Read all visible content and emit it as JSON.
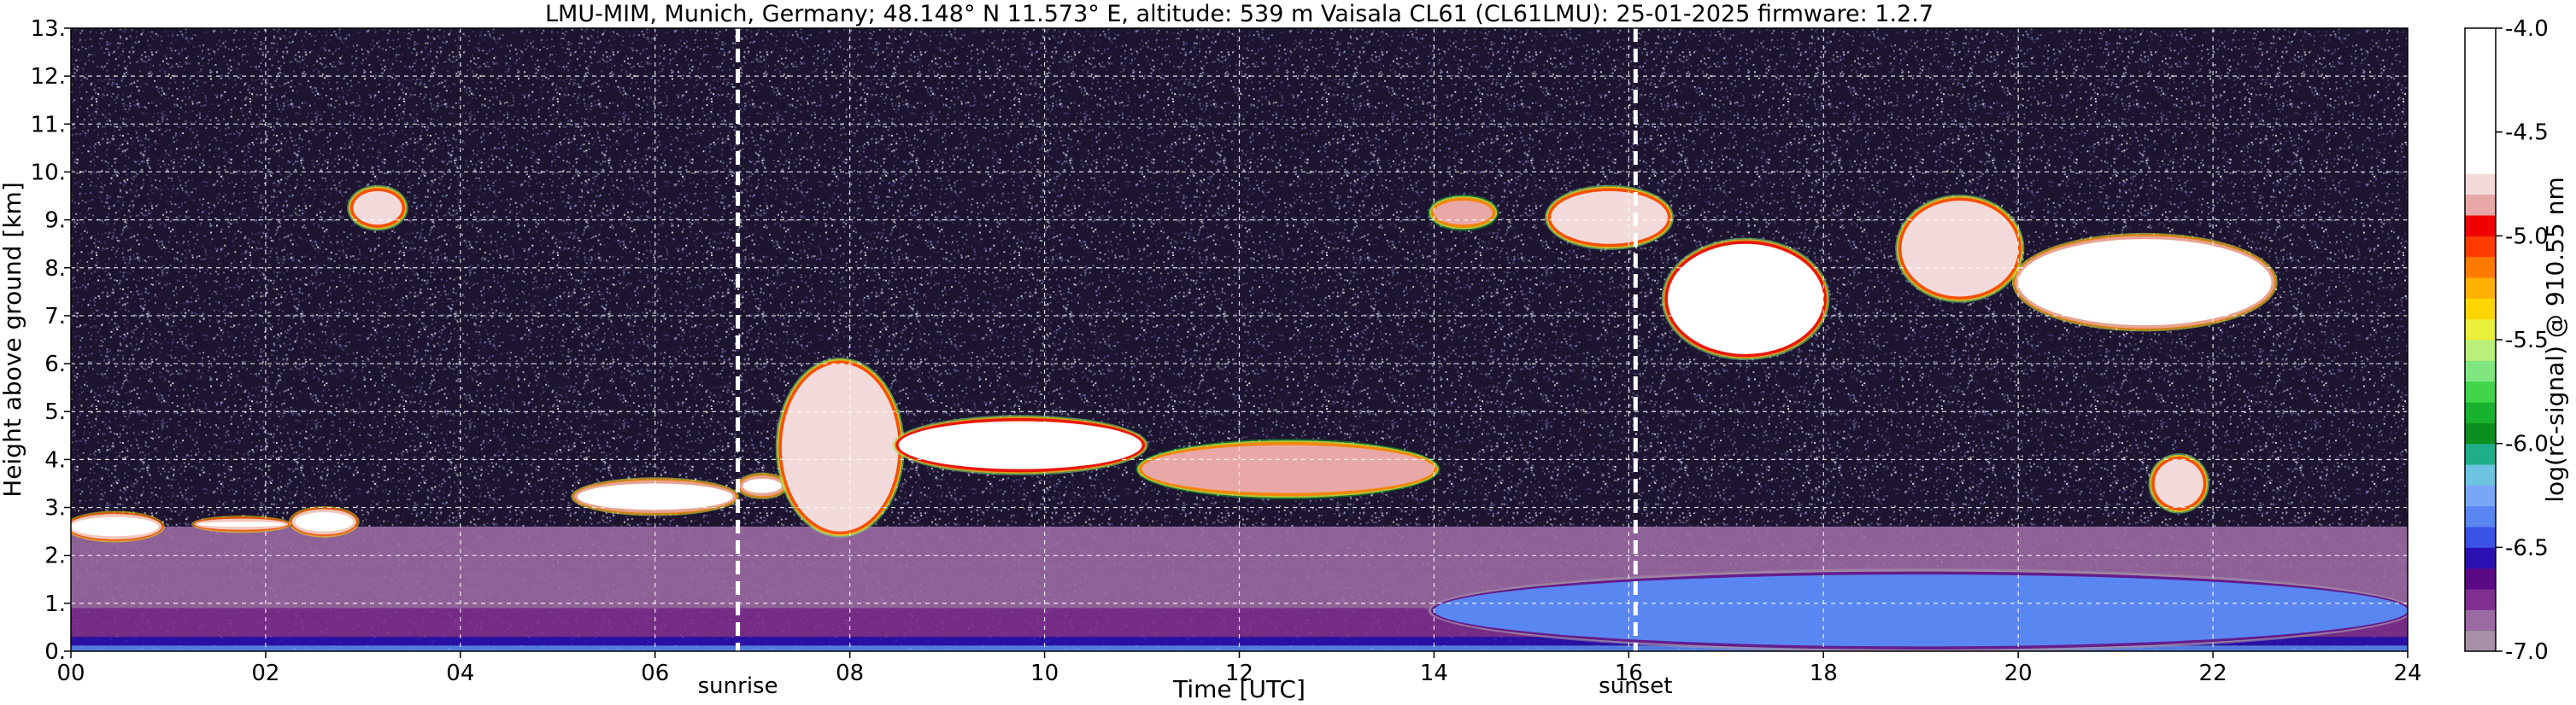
{
  "chart_data": {
    "type": "heatmap",
    "title": "LMU-MIM, Munich, Germany; 48.148° N 11.573° E, altitude: 539 m    Vaisala CL61 (CL61LMU): 25-01-2025    firmware: 1.2.7",
    "xlabel": "Time [UTC]",
    "ylabel": "Height above ground [km]",
    "xlim": [
      0,
      24
    ],
    "ylim": [
      0,
      13
    ],
    "x_ticks": [
      0,
      2,
      4,
      6,
      8,
      10,
      12,
      14,
      16,
      18,
      20,
      22,
      24
    ],
    "x_tick_labels": [
      "00",
      "02",
      "04",
      "06",
      "08",
      "10",
      "12",
      "14",
      "16",
      "18",
      "20",
      "22",
      "24"
    ],
    "y_ticks": [
      0,
      1,
      2,
      3,
      4,
      5,
      6,
      7,
      8,
      9,
      10,
      11,
      12,
      13
    ],
    "y_tick_labels": [
      "0.",
      "1.",
      "2.",
      "3.",
      "4.",
      "5.",
      "6.",
      "7.",
      "8.",
      "9.",
      "10.",
      "11.",
      "12.",
      "13."
    ],
    "grid": true,
    "colorbar": {
      "label": "log(rc-signal) @ 910.55 nm",
      "range": [
        -7.0,
        -4.0
      ],
      "ticks": [
        -7.0,
        -6.5,
        -6.0,
        -5.5,
        -5.0,
        -4.5,
        -4.0
      ],
      "tick_labels": [
        "-7.0",
        "-6.5",
        "-6.0",
        "-5.5",
        "-5.0",
        "-4.5",
        "-4.0"
      ],
      "levels": [
        {
          "from": -7.0,
          "to": -6.9,
          "color": "#a690a8"
        },
        {
          "from": -6.9,
          "to": -6.8,
          "color": "#9b6aa3"
        },
        {
          "from": -6.8,
          "to": -6.7,
          "color": "#7f2f8f"
        },
        {
          "from": -6.7,
          "to": -6.6,
          "color": "#5b0a86"
        },
        {
          "from": -6.6,
          "to": -6.5,
          "color": "#2a10b0"
        },
        {
          "from": -6.5,
          "to": -6.4,
          "color": "#3a52e6"
        },
        {
          "from": -6.4,
          "to": -6.3,
          "color": "#5a86f2"
        },
        {
          "from": -6.3,
          "to": -6.2,
          "color": "#7aa6f6"
        },
        {
          "from": -6.2,
          "to": -6.1,
          "color": "#6cc4e0"
        },
        {
          "from": -6.1,
          "to": -6.0,
          "color": "#1fae8a"
        },
        {
          "from": -6.0,
          "to": -5.9,
          "color": "#0c8f1e"
        },
        {
          "from": -5.9,
          "to": -5.8,
          "color": "#18b22e"
        },
        {
          "from": -5.8,
          "to": -5.7,
          "color": "#3fd44a"
        },
        {
          "from": -5.7,
          "to": -5.6,
          "color": "#7fe680"
        },
        {
          "from": -5.6,
          "to": -5.5,
          "color": "#b9f07a"
        },
        {
          "from": -5.5,
          "to": -5.4,
          "color": "#e9f03a"
        },
        {
          "from": -5.4,
          "to": -5.3,
          "color": "#ffd500"
        },
        {
          "from": -5.3,
          "to": -5.2,
          "color": "#ffb000"
        },
        {
          "from": -5.2,
          "to": -5.1,
          "color": "#ff7a00"
        },
        {
          "from": -5.1,
          "to": -5.0,
          "color": "#ff3c00"
        },
        {
          "from": -5.0,
          "to": -4.9,
          "color": "#f00000"
        },
        {
          "from": -4.9,
          "to": -4.8,
          "color": "#e9a8a8"
        },
        {
          "from": -4.8,
          "to": -4.7,
          "color": "#f2dada"
        },
        {
          "from": -4.7,
          "to": -4.0,
          "color": "#ffffff"
        }
      ]
    },
    "markers": [
      {
        "label": "sunrise",
        "x": 6.85
      },
      {
        "label": "sunset",
        "x": 16.07
      }
    ],
    "background_bands": [
      {
        "from": 0.0,
        "to": 0.12,
        "level": -6.4
      },
      {
        "from": 0.12,
        "to": 0.3,
        "level": -6.6
      },
      {
        "from": 0.3,
        "to": 0.9,
        "level": -6.8
      },
      {
        "from": 0.9,
        "to": 1.7,
        "level": -6.85
      },
      {
        "from": 1.7,
        "to": 2.6,
        "level": -6.9
      }
    ],
    "features": [
      {
        "name": "low cloud 00-01",
        "x": [
          0.0,
          0.9
        ],
        "y": [
          2.4,
          2.8
        ],
        "level": -4.5
      },
      {
        "name": "low cloud 01-02",
        "x": [
          1.3,
          2.2
        ],
        "y": [
          2.6,
          2.7
        ],
        "level": -4.5
      },
      {
        "name": "low cloud 02-03",
        "x": [
          2.3,
          2.9
        ],
        "y": [
          2.5,
          2.9
        ],
        "level": -4.5
      },
      {
        "name": "cloud 05-06",
        "x": [
          5.2,
          6.8
        ],
        "y": [
          2.95,
          3.5
        ],
        "level": -4.6
      },
      {
        "name": "cloud 06-07",
        "x": [
          6.9,
          7.3
        ],
        "y": [
          3.3,
          3.6
        ],
        "level": -4.6
      },
      {
        "name": "mid cloud 07-08.5",
        "x": [
          7.3,
          8.5
        ],
        "y": [
          2.5,
          6.0
        ],
        "level": -4.8
      },
      {
        "name": "mid cloud 08.5-11",
        "x": [
          8.5,
          11.0
        ],
        "y": [
          3.8,
          4.8
        ],
        "level": -4.7
      },
      {
        "name": "mid cloud 11-14",
        "x": [
          11.0,
          14.0
        ],
        "y": [
          3.3,
          4.3
        ],
        "level": -4.9
      },
      {
        "name": "cirrus 03",
        "x": [
          2.9,
          3.4
        ],
        "y": [
          8.9,
          9.6
        ],
        "level": -4.8
      },
      {
        "name": "cirrus 14",
        "x": [
          14.0,
          14.6
        ],
        "y": [
          8.9,
          9.4
        ],
        "level": -4.9
      },
      {
        "name": "cirrus 15-16",
        "x": [
          15.2,
          16.4
        ],
        "y": [
          8.5,
          9.6
        ],
        "level": -4.8
      },
      {
        "name": "cirrus 16-18",
        "x": [
          16.4,
          18.0
        ],
        "y": [
          6.2,
          8.5
        ],
        "level": -4.7
      },
      {
        "name": "cirrus 19-20",
        "x": [
          18.8,
          20.0
        ],
        "y": [
          7.4,
          9.4
        ],
        "level": -4.8
      },
      {
        "name": "cirrus 20-22.5",
        "x": [
          20.0,
          22.6
        ],
        "y": [
          6.8,
          8.6
        ],
        "level": -4.6
      },
      {
        "name": "cloud 21.5",
        "x": [
          21.4,
          21.9
        ],
        "y": [
          3.0,
          4.0
        ],
        "level": -4.8
      },
      {
        "name": "aerosol layer",
        "x": [
          14.0,
          24.0
        ],
        "y": [
          0.1,
          1.6
        ],
        "level": -6.35
      }
    ]
  }
}
